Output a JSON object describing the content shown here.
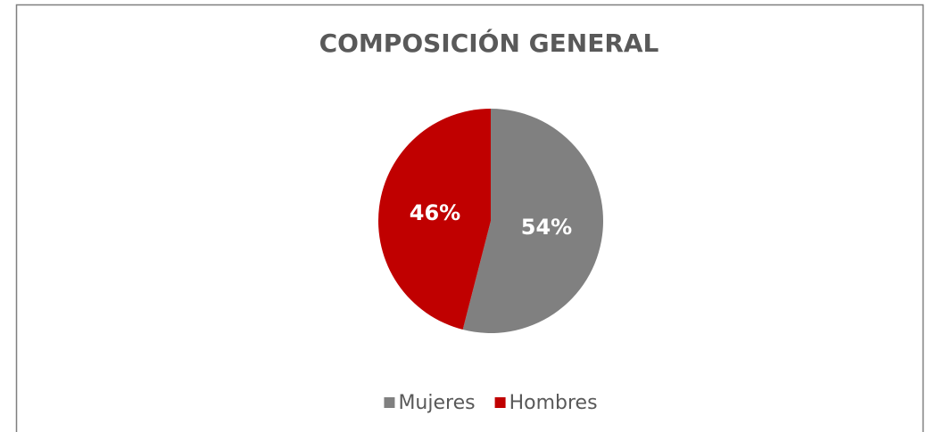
{
  "chart_data": {
    "type": "pie",
    "title": "COMPOSICIÓN GENERAL",
    "categories": [
      "Mujeres",
      "Hombres"
    ],
    "values": [
      54,
      46
    ],
    "value_labels": [
      "54%",
      "46%"
    ],
    "colors": [
      "#808080",
      "#c00000"
    ],
    "legend": "bottom"
  }
}
